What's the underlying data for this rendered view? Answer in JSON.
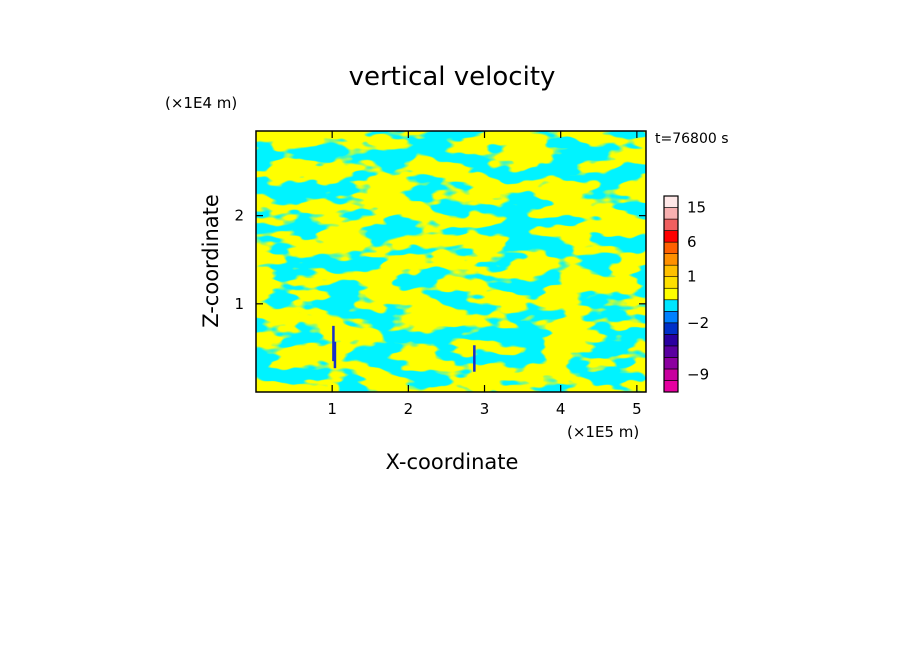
{
  "chart_data": {
    "type": "heatmap",
    "title": "vertical velocity",
    "xlabel": "X-coordinate",
    "ylabel": "Z-coordinate",
    "x_unit": "(×1E5 m)",
    "y_unit": "(×1E4 m)",
    "time_label": "t=76800 s",
    "xlim": [
      0,
      5.12
    ],
    "ylim": [
      0,
      2.96
    ],
    "x_ticks": [
      {
        "value": 1,
        "label": "1"
      },
      {
        "value": 2,
        "label": "2"
      },
      {
        "value": 3,
        "label": "3"
      },
      {
        "value": 4,
        "label": "4"
      },
      {
        "value": 5,
        "label": "5"
      }
    ],
    "y_ticks": [
      {
        "value": 1,
        "label": "1"
      },
      {
        "value": 2,
        "label": "2"
      }
    ],
    "field_colors": {
      "positive": "#ffff00",
      "negative": "#00e5ff",
      "strong_negative": "#1a30c8"
    },
    "colorbar": {
      "levels": [
        {
          "lo": -12,
          "hi": -10,
          "color": "#e600a0"
        },
        {
          "lo": -10,
          "hi": -8,
          "color": "#c8009e"
        },
        {
          "lo": -8,
          "hi": -6,
          "color": "#8c00a0"
        },
        {
          "lo": -6,
          "hi": -4,
          "color": "#5a00a0"
        },
        {
          "lo": -4,
          "hi": -3,
          "color": "#2a00a0"
        },
        {
          "lo": -3,
          "hi": -2,
          "color": "#0030c8"
        },
        {
          "lo": -2,
          "hi": -1,
          "color": "#0080ff"
        },
        {
          "lo": -1,
          "hi": 0,
          "color": "#00e5ff"
        },
        {
          "lo": 0,
          "hi": 0.5,
          "color": "#ffff00"
        },
        {
          "lo": 0.5,
          "hi": 1,
          "color": "#ffe000"
        },
        {
          "lo": 1,
          "hi": 2,
          "color": "#ffc000"
        },
        {
          "lo": 2,
          "hi": 4,
          "color": "#ff9000"
        },
        {
          "lo": 4,
          "hi": 6,
          "color": "#ff6000"
        },
        {
          "lo": 6,
          "hi": 9,
          "color": "#ff0000"
        },
        {
          "lo": 9,
          "hi": 12,
          "color": "#f06060"
        },
        {
          "lo": 12,
          "hi": 15,
          "color": "#f8b0b0"
        },
        {
          "lo": 15,
          "hi": 20,
          "color": "#ffe8e8"
        }
      ],
      "labels": [
        {
          "value": 15,
          "text": "15"
        },
        {
          "value": 6,
          "text": "6"
        },
        {
          "value": 1,
          "text": "1"
        },
        {
          "value": -2,
          "text": "−2"
        },
        {
          "value": -9,
          "text": "−9"
        }
      ]
    }
  }
}
